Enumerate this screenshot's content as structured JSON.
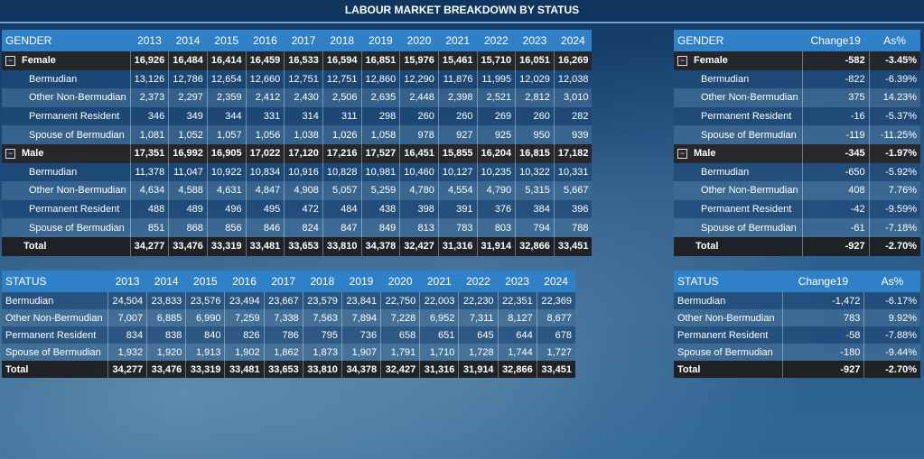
{
  "title": "LABOUR MARKET BREAKDOWN BY STATUS",
  "gender_table": {
    "header_label": "GENDER",
    "years": [
      "2013",
      "2014",
      "2015",
      "2016",
      "2017",
      "2018",
      "2019",
      "2020",
      "2021",
      "2022",
      "2023",
      "2024"
    ],
    "rows": [
      {
        "label": "Female",
        "group": true,
        "values": [
          "16,926",
          "16,484",
          "16,414",
          "16,459",
          "16,533",
          "16,594",
          "16,851",
          "15,976",
          "15,461",
          "15,710",
          "16,051",
          "16,269"
        ]
      },
      {
        "label": "Bermudian",
        "values": [
          "13,126",
          "12,786",
          "12,654",
          "12,660",
          "12,751",
          "12,751",
          "12,860",
          "12,290",
          "11,876",
          "11,995",
          "12,029",
          "12,038"
        ]
      },
      {
        "label": "Other Non-Bermudian",
        "values": [
          "2,373",
          "2,297",
          "2,359",
          "2,412",
          "2,430",
          "2,506",
          "2,635",
          "2,448",
          "2,398",
          "2,521",
          "2,812",
          "3,010"
        ]
      },
      {
        "label": "Permanent Resident",
        "values": [
          "346",
          "349",
          "344",
          "331",
          "314",
          "311",
          "298",
          "260",
          "260",
          "269",
          "260",
          "282"
        ]
      },
      {
        "label": "Spouse of Bermudian",
        "values": [
          "1,081",
          "1,052",
          "1,057",
          "1,056",
          "1,038",
          "1,026",
          "1,058",
          "978",
          "927",
          "925",
          "950",
          "939"
        ]
      },
      {
        "label": "Male",
        "group": true,
        "values": [
          "17,351",
          "16,992",
          "16,905",
          "17,022",
          "17,120",
          "17,216",
          "17,527",
          "16,451",
          "15,855",
          "16,204",
          "16,815",
          "17,182"
        ]
      },
      {
        "label": "Bermudian",
        "values": [
          "11,378",
          "11,047",
          "10,922",
          "10,834",
          "10,916",
          "10,828",
          "10,981",
          "10,460",
          "10,127",
          "10,235",
          "10,322",
          "10,331"
        ]
      },
      {
        "label": "Other Non-Bermudian",
        "values": [
          "4,634",
          "4,588",
          "4,631",
          "4,847",
          "4,908",
          "5,057",
          "5,259",
          "4,780",
          "4,554",
          "4,790",
          "5,315",
          "5,667"
        ]
      },
      {
        "label": "Permanent Resident",
        "values": [
          "488",
          "489",
          "496",
          "495",
          "472",
          "484",
          "438",
          "398",
          "391",
          "376",
          "384",
          "396"
        ]
      },
      {
        "label": "Spouse of Bermudian",
        "values": [
          "851",
          "868",
          "856",
          "846",
          "824",
          "847",
          "849",
          "813",
          "783",
          "803",
          "794",
          "788"
        ]
      },
      {
        "label": "Total",
        "total": true,
        "values": [
          "34,277",
          "33,476",
          "33,319",
          "33,481",
          "33,653",
          "33,810",
          "34,378",
          "32,427",
          "31,316",
          "31,914",
          "32,866",
          "33,451"
        ]
      }
    ]
  },
  "gender_change_table": {
    "header_label": "GENDER",
    "col_change": "Change19",
    "col_pct": "As%",
    "rows": [
      {
        "label": "Female",
        "group": true,
        "change": "-582",
        "pct": "-3.45%"
      },
      {
        "label": "Bermudian",
        "change": "-822",
        "pct": "-6.39%"
      },
      {
        "label": "Other Non-Bermudian",
        "change": "375",
        "pct": "14.23%"
      },
      {
        "label": "Permanent Resident",
        "change": "-16",
        "pct": "-5.37%"
      },
      {
        "label": "Spouse of Bermudian",
        "change": "-119",
        "pct": "-11.25%"
      },
      {
        "label": "Male",
        "group": true,
        "change": "-345",
        "pct": "-1.97%"
      },
      {
        "label": "Bermudian",
        "change": "-650",
        "pct": "-5.92%"
      },
      {
        "label": "Other Non-Bermudian",
        "change": "408",
        "pct": "7.76%"
      },
      {
        "label": "Permanent Resident",
        "change": "-42",
        "pct": "-9.59%"
      },
      {
        "label": "Spouse of Bermudian",
        "change": "-61",
        "pct": "-7.18%"
      },
      {
        "label": "Total",
        "total": true,
        "change": "-927",
        "pct": "-2.70%"
      }
    ]
  },
  "status_table": {
    "header_label": "STATUS",
    "years": [
      "2013",
      "2014",
      "2015",
      "2016",
      "2017",
      "2018",
      "2019",
      "2020",
      "2021",
      "2022",
      "2023",
      "2024"
    ],
    "rows": [
      {
        "label": "Bermudian",
        "values": [
          "24,504",
          "23,833",
          "23,576",
          "23,494",
          "23,667",
          "23,579",
          "23,841",
          "22,750",
          "22,003",
          "22,230",
          "22,351",
          "22,369"
        ]
      },
      {
        "label": "Other Non-Bermudian",
        "values": [
          "7,007",
          "6,885",
          "6,990",
          "7,259",
          "7,338",
          "7,563",
          "7,894",
          "7,228",
          "6,952",
          "7,311",
          "8,127",
          "8,677"
        ]
      },
      {
        "label": "Permanent Resident",
        "values": [
          "834",
          "838",
          "840",
          "826",
          "786",
          "795",
          "736",
          "658",
          "651",
          "645",
          "644",
          "678"
        ]
      },
      {
        "label": "Spouse of Bermudian",
        "values": [
          "1,932",
          "1,920",
          "1,913",
          "1,902",
          "1,862",
          "1,873",
          "1,907",
          "1,791",
          "1,710",
          "1,728",
          "1,744",
          "1,727"
        ]
      },
      {
        "label": "Total",
        "total": true,
        "values": [
          "34,277",
          "33,476",
          "33,319",
          "33,481",
          "33,653",
          "33,810",
          "34,378",
          "32,427",
          "31,316",
          "31,914",
          "32,866",
          "33,451"
        ]
      }
    ]
  },
  "status_change_table": {
    "header_label": "STATUS",
    "col_change": "Change19",
    "col_pct": "As%",
    "rows": [
      {
        "label": "Bermudian",
        "change": "-1,472",
        "pct": "-6.17%"
      },
      {
        "label": "Other Non-Bermudian",
        "change": "783",
        "pct": "9.92%"
      },
      {
        "label": "Permanent Resident",
        "change": "-58",
        "pct": "-7.88%"
      },
      {
        "label": "Spouse of Bermudian",
        "change": "-180",
        "pct": "-9.44%"
      },
      {
        "label": "Total",
        "total": true,
        "change": "-927",
        "pct": "-2.70%"
      }
    ]
  },
  "icons": {
    "collapse": "minus-box-icon"
  },
  "colors": {
    "header_blue": "#2f80c6",
    "group_dark": "#262628",
    "title_bg": "#10365e",
    "accent_line": "#6fa2cf"
  }
}
